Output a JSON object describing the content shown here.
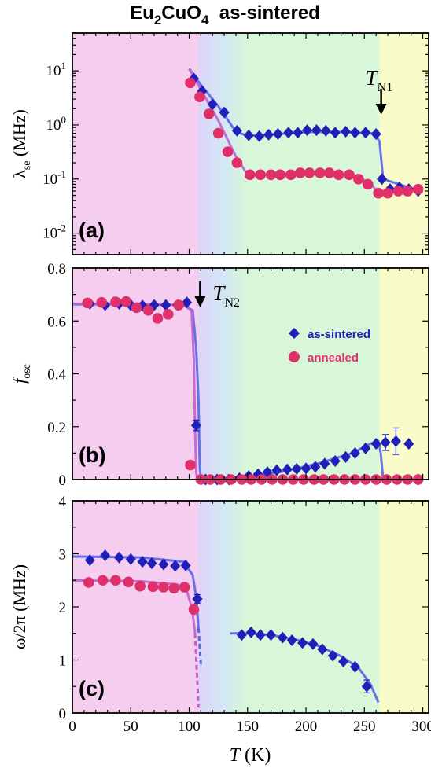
{
  "title": {
    "base": "Eu",
    "sub1": "2",
    "mid": "CuO",
    "sub2": "4",
    "rest": "  as-sintered"
  },
  "colors": {
    "as_sintered": "#2020b8",
    "annealed": "#e0306a",
    "fit_as_sintered": "#5566e8",
    "fit_annealed": "#c060d0",
    "bg_low": "#f5cdee",
    "bg_mid_start": "#d6d4f8",
    "bg_mid_end": "#d8f6d8",
    "bg_high": "#f9fbc8"
  },
  "xaxis": {
    "label_italic": "T",
    "label_rest": " (K)",
    "ticks": [
      "0",
      "50",
      "100",
      "150",
      "200",
      "250",
      "300"
    ],
    "range": [
      0,
      305
    ]
  },
  "regions": [
    {
      "from": 0,
      "to": 108,
      "kind": "low"
    },
    {
      "from": 108,
      "to": 148,
      "kind": "gradient"
    },
    {
      "from": 148,
      "to": 263,
      "kind": "mid"
    },
    {
      "from": 263,
      "to": 305,
      "kind": "high"
    }
  ],
  "legend": {
    "as_sintered": "as-sintered",
    "annealed": "annealed"
  },
  "chart_data": [
    {
      "type": "scatter",
      "panel_label": "(a)",
      "ylabel": {
        "main": "λ",
        "sub": "se",
        "rest": " (MHz)"
      },
      "yscale": "log",
      "ylim": [
        0.004,
        50
      ],
      "yticks": [
        {
          "base": "10",
          "exp": "1",
          "v": 10
        },
        {
          "base": "10",
          "exp": "0",
          "v": 1
        },
        {
          "base": "10",
          "exp": "-1",
          "v": 0.1
        },
        {
          "base": "10",
          "exp": "-2",
          "v": 0.01
        }
      ],
      "annotation": {
        "text_italic": "T",
        "text_sub": "N1",
        "x": 263
      },
      "series": [
        {
          "name": "as-sintered",
          "marker": "diamond",
          "x": [
            104,
            111,
            120,
            130,
            141,
            151,
            160,
            168,
            176,
            185,
            193,
            201,
            209,
            217,
            225,
            234,
            242,
            251,
            260,
            265,
            272,
            280,
            288,
            296
          ],
          "y": [
            7.2,
            4.2,
            2.4,
            1.7,
            0.78,
            0.64,
            0.62,
            0.66,
            0.68,
            0.72,
            0.72,
            0.8,
            0.8,
            0.78,
            0.72,
            0.75,
            0.72,
            0.72,
            0.68,
            0.1,
            0.065,
            0.07,
            0.065,
            0.06
          ]
        },
        {
          "name": "annealed",
          "marker": "circle",
          "x": [
            101,
            109,
            117,
            125,
            133,
            141,
            152,
            161,
            170,
            178,
            187,
            195,
            203,
            212,
            220,
            228,
            237,
            245,
            253,
            262,
            270,
            279,
            287,
            296
          ],
          "y": [
            6.0,
            3.3,
            1.6,
            0.7,
            0.32,
            0.2,
            0.12,
            0.12,
            0.12,
            0.12,
            0.12,
            0.13,
            0.13,
            0.13,
            0.13,
            0.12,
            0.12,
            0.1,
            0.08,
            0.055,
            0.055,
            0.06,
            0.06,
            0.065
          ]
        }
      ],
      "fits": [
        {
          "name": "as-sintered",
          "x": [
            100,
            110,
            125,
            140,
            150,
            170,
            200,
            230,
            258,
            263,
            266,
            300
          ],
          "y": [
            11,
            5.5,
            2.2,
            0.75,
            0.63,
            0.66,
            0.74,
            0.74,
            0.7,
            0.5,
            0.1,
            0.058
          ]
        },
        {
          "name": "annealed",
          "x": [
            100,
            110,
            125,
            140,
            150,
            170,
            200,
            240,
            255,
            262,
            270,
            300
          ],
          "y": [
            11,
            4.5,
            1.2,
            0.26,
            0.12,
            0.12,
            0.13,
            0.12,
            0.085,
            0.055,
            0.056,
            0.063
          ]
        }
      ]
    },
    {
      "type": "scatter",
      "panel_label": "(b)",
      "ylabel": {
        "main": "f",
        "sub": "osc",
        "rest": ""
      },
      "yscale": "linear",
      "ylim": [
        0,
        0.8
      ],
      "yticks": [
        {
          "label": "0",
          "v": 0
        },
        {
          "label": "0.2",
          "v": 0.2
        },
        {
          "label": "0.4",
          "v": 0.4
        },
        {
          "label": "0.6",
          "v": 0.6
        },
        {
          "label": "0.8",
          "v": 0.8
        }
      ],
      "annotation": {
        "text_italic": "T",
        "text_sub": "N2",
        "x": 108
      },
      "series": [
        {
          "name": "as-sintered",
          "marker": "diamond",
          "x": [
            15,
            28,
            40,
            50,
            60,
            70,
            80,
            90,
            98,
            106,
            114,
            124,
            134,
            143,
            151,
            159,
            167,
            175,
            184,
            192,
            200,
            208,
            216,
            225,
            234,
            242,
            251,
            260,
            268,
            277,
            288,
            296
          ],
          "y": [
            0.665,
            0.66,
            0.665,
            0.66,
            0.658,
            0.66,
            0.66,
            0.66,
            0.67,
            0.205,
            0,
            0,
            0,
            0.005,
            0.013,
            0.02,
            0.028,
            0.035,
            0.038,
            0.04,
            0.042,
            0.048,
            0.06,
            0.07,
            0.085,
            0.1,
            0.118,
            0.135,
            0.14,
            0.145,
            0.135,
            0
          ],
          "yerr": [
            0,
            0,
            0,
            0,
            0,
            0,
            0,
            0,
            0,
            0.02,
            0,
            0,
            0,
            0,
            0,
            0,
            0,
            0,
            0,
            0,
            0,
            0,
            0,
            0,
            0,
            0,
            0,
            0,
            0.03,
            0.05,
            0,
            0
          ]
        },
        {
          "name": "annealed",
          "marker": "circle",
          "x": [
            13,
            25,
            37,
            46,
            55,
            65,
            73,
            82,
            91,
            101,
            110,
            118,
            127,
            136,
            145,
            153,
            162,
            171,
            180,
            189,
            198,
            207,
            215,
            224,
            233,
            242,
            251,
            260,
            269,
            278,
            287,
            296
          ],
          "y": [
            0.668,
            0.67,
            0.672,
            0.673,
            0.65,
            0.64,
            0.61,
            0.625,
            0.66,
            0.055,
            0,
            0,
            0,
            0,
            0,
            0,
            0,
            0,
            0,
            0,
            0,
            0,
            0,
            0,
            0,
            0,
            0,
            0,
            0,
            0,
            0,
            0
          ]
        }
      ],
      "fits": [
        {
          "name": "as-sintered",
          "x": [
            0,
            60,
            95,
            103,
            106,
            108,
            109,
            110,
            120,
            150,
            180,
            210,
            240,
            255,
            262,
            264,
            266,
            300
          ],
          "y": [
            0.663,
            0.663,
            0.66,
            0.64,
            0.5,
            0.3,
            0.05,
            0,
            0,
            0.01,
            0.03,
            0.06,
            0.1,
            0.135,
            0.145,
            0.1,
            0,
            0
          ]
        },
        {
          "name": "annealed",
          "x": [
            0,
            60,
            95,
            102,
            104,
            105,
            106,
            107
          ],
          "y": [
            0.665,
            0.665,
            0.66,
            0.64,
            0.45,
            0.2,
            0.03,
            0
          ]
        }
      ]
    },
    {
      "type": "scatter",
      "panel_label": "(c)",
      "ylabel": {
        "main": "ω/2π",
        "sub": "",
        "rest": " (MHz)"
      },
      "yscale": "linear",
      "ylim": [
        0,
        4
      ],
      "yticks": [
        {
          "label": "0",
          "v": 0
        },
        {
          "label": "1",
          "v": 1
        },
        {
          "label": "2",
          "v": 2
        },
        {
          "label": "3",
          "v": 3
        },
        {
          "label": "4",
          "v": 4
        }
      ],
      "series": [
        {
          "name": "as-sintered",
          "marker": "diamond",
          "x": [
            15,
            28,
            40,
            50,
            60,
            68,
            78,
            88,
            97,
            107,
            145,
            153,
            161,
            170,
            180,
            188,
            197,
            206,
            214,
            223,
            232,
            242,
            252
          ],
          "y": [
            2.88,
            2.97,
            2.93,
            2.9,
            2.85,
            2.82,
            2.8,
            2.77,
            2.78,
            2.15,
            1.47,
            1.52,
            1.47,
            1.47,
            1.42,
            1.37,
            1.32,
            1.3,
            1.2,
            1.08,
            0.97,
            0.87,
            0.5
          ],
          "yerr": [
            0,
            0,
            0,
            0,
            0,
            0,
            0,
            0,
            0,
            0.08,
            0.05,
            0,
            0,
            0,
            0,
            0,
            0,
            0,
            0,
            0,
            0,
            0,
            0.12
          ]
        },
        {
          "name": "annealed",
          "marker": "circle",
          "x": [
            14,
            26,
            37,
            48,
            58,
            69,
            78,
            87,
            96,
            104
          ],
          "y": [
            2.46,
            2.5,
            2.5,
            2.47,
            2.39,
            2.38,
            2.37,
            2.35,
            2.37,
            1.95
          ],
          "yerr": [
            0,
            0,
            0,
            0,
            0,
            0,
            0,
            0,
            0,
            0.06
          ]
        }
      ],
      "fits": [
        {
          "name": "as-sintered",
          "x": [
            0,
            60,
            95,
            103,
            106,
            108
          ],
          "y": [
            2.95,
            2.93,
            2.85,
            2.6,
            2.2,
            1.6
          ],
          "dashed_to": {
            "x": [
              108,
              110
            ],
            "y": [
              1.6,
              0.9
            ]
          }
        },
        {
          "name": "as-sintered",
          "x": [
            135,
            150,
            170,
            190,
            210,
            230,
            245,
            255,
            262
          ],
          "y": [
            1.5,
            1.5,
            1.47,
            1.39,
            1.27,
            1.07,
            0.85,
            0.55,
            0.2
          ]
        },
        {
          "name": "annealed",
          "x": [
            0,
            60,
            90,
            98,
            102,
            104,
            105
          ],
          "y": [
            2.5,
            2.48,
            2.42,
            2.3,
            2.0,
            1.7,
            1.5
          ],
          "dashed_to": {
            "x": [
              105,
              108
            ],
            "y": [
              1.5,
              0.1
            ]
          }
        }
      ]
    }
  ]
}
